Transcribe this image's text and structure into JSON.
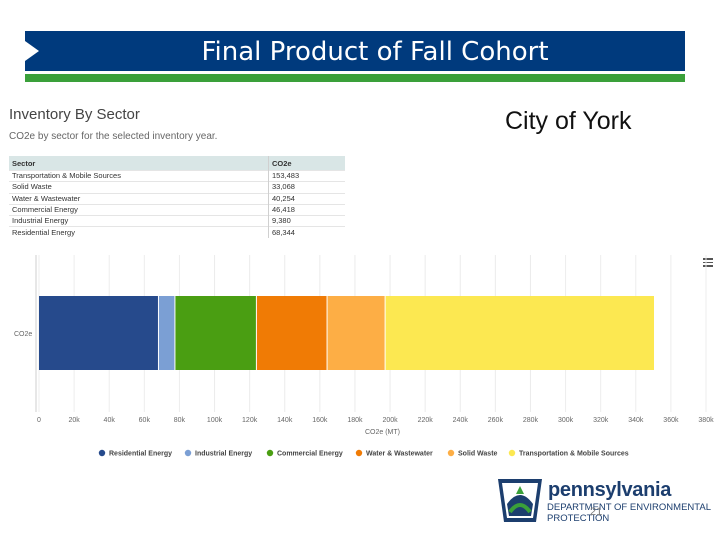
{
  "slide": {
    "title": "Final Product of Fall Cohort",
    "city": "City of York",
    "page_number": "21"
  },
  "inventory": {
    "title": "Inventory By Sector",
    "subtitle": "CO2e by sector for the selected inventory year.",
    "columns": [
      "Sector",
      "CO2e"
    ],
    "rows": [
      {
        "sector": "Transportation & Mobile Sources",
        "co2e": "153,483"
      },
      {
        "sector": "Solid Waste",
        "co2e": "33,068"
      },
      {
        "sector": "Water & Wastewater",
        "co2e": "40,254"
      },
      {
        "sector": "Commercial Energy",
        "co2e": "46,418"
      },
      {
        "sector": "Industrial Energy",
        "co2e": "9,380"
      },
      {
        "sector": "Residential Energy",
        "co2e": "68,344"
      }
    ]
  },
  "logo": {
    "name": "pennsylvania",
    "line1": "DEPARTMENT OF ENVIRONMENTAL",
    "line2": "PROTECTION"
  },
  "chart_data": {
    "type": "bar",
    "orientation": "horizontal",
    "stacked": true,
    "categories": [
      "CO2e"
    ],
    "xlabel": "CO2e (MT)",
    "ylabel": "",
    "xlim": [
      0,
      380000
    ],
    "xticks": [
      "0",
      "20k",
      "40k",
      "60k",
      "80k",
      "100k",
      "120k",
      "140k",
      "160k",
      "180k",
      "200k",
      "220k",
      "240k",
      "260k",
      "280k",
      "300k",
      "320k",
      "340k",
      "360k",
      "380k"
    ],
    "legend_position": "bottom",
    "series": [
      {
        "name": "Residential Energy",
        "values": [
          68344
        ],
        "color": "#264a8c"
      },
      {
        "name": "Industrial Energy",
        "values": [
          9380
        ],
        "color": "#7b9fd4"
      },
      {
        "name": "Commercial Energy",
        "values": [
          46418
        ],
        "color": "#4a9e12"
      },
      {
        "name": "Water & Wastewater",
        "values": [
          40254
        ],
        "color": "#f07b05"
      },
      {
        "name": "Solid Waste",
        "values": [
          33068
        ],
        "color": "#fdae45"
      },
      {
        "name": "Transportation & Mobile Sources",
        "values": [
          153483
        ],
        "color": "#fce851"
      }
    ]
  }
}
